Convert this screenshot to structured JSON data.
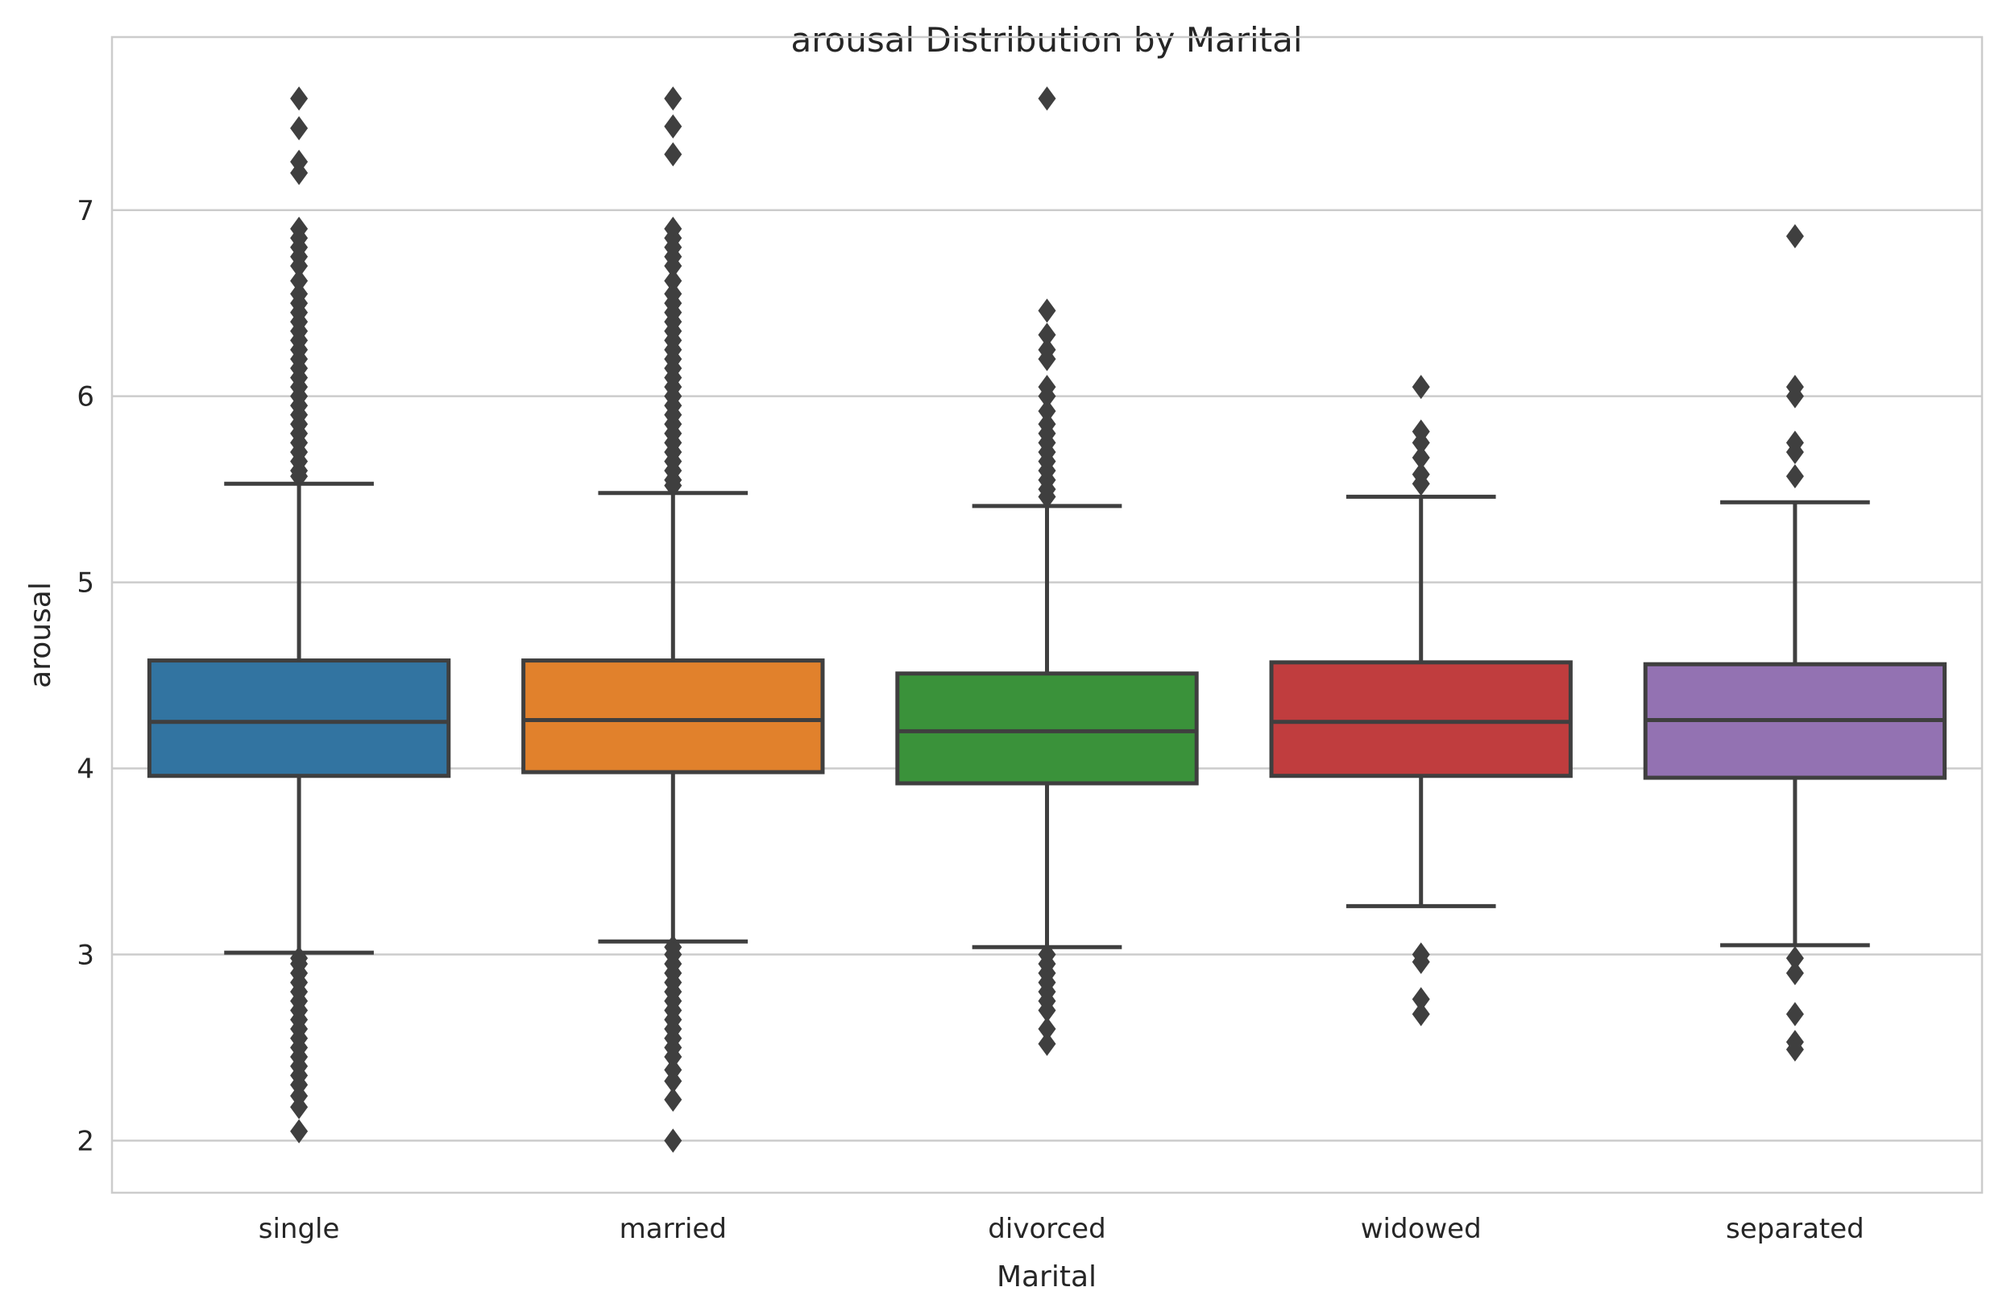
{
  "chart_data": {
    "type": "box",
    "title": "arousal Distribution by Marital",
    "xlabel": "Marital",
    "ylabel": "arousal",
    "ylim": [
      1.72,
      7.93
    ],
    "yticks": [
      2,
      3,
      4,
      5,
      6,
      7
    ],
    "grid": true,
    "categories": [
      "single",
      "married",
      "divorced",
      "widowed",
      "separated"
    ],
    "colors": [
      "#3274a1",
      "#e1812c",
      "#3a923a",
      "#c03d3e",
      "#9372b2"
    ],
    "series": [
      {
        "category": "single",
        "whisker_low": 3.01,
        "q1": 3.96,
        "median": 4.25,
        "q3": 4.58,
        "whisker_high": 5.53,
        "outliers": [
          7.6,
          7.44,
          7.26,
          7.2,
          6.9,
          6.85,
          6.8,
          6.75,
          6.7,
          6.62,
          6.55,
          6.5,
          6.45,
          6.4,
          6.35,
          6.3,
          6.25,
          6.2,
          6.15,
          6.1,
          6.05,
          6.0,
          5.95,
          5.9,
          5.85,
          5.8,
          5.75,
          5.7,
          5.65,
          5.6,
          5.57,
          2.98,
          2.95,
          2.9,
          2.85,
          2.8,
          2.75,
          2.7,
          2.65,
          2.6,
          2.55,
          2.5,
          2.45,
          2.4,
          2.35,
          2.3,
          2.24,
          2.18,
          2.05
        ]
      },
      {
        "category": "married",
        "whisker_low": 3.07,
        "q1": 3.98,
        "median": 4.26,
        "q3": 4.58,
        "whisker_high": 5.48,
        "outliers": [
          7.6,
          7.45,
          7.3,
          6.9,
          6.85,
          6.8,
          6.75,
          6.7,
          6.62,
          6.55,
          6.5,
          6.45,
          6.4,
          6.35,
          6.3,
          6.25,
          6.2,
          6.15,
          6.1,
          6.05,
          6.0,
          5.95,
          5.9,
          5.85,
          5.8,
          5.75,
          5.7,
          5.65,
          5.6,
          5.55,
          5.52,
          3.04,
          3.0,
          2.95,
          2.9,
          2.85,
          2.8,
          2.75,
          2.7,
          2.65,
          2.6,
          2.55,
          2.5,
          2.45,
          2.38,
          2.32,
          2.22,
          2.0
        ]
      },
      {
        "category": "divorced",
        "whisker_low": 3.04,
        "q1": 3.92,
        "median": 4.2,
        "q3": 4.51,
        "whisker_high": 5.41,
        "outliers": [
          7.6,
          6.46,
          6.33,
          6.25,
          6.2,
          6.05,
          6.0,
          5.92,
          5.85,
          5.8,
          5.75,
          5.7,
          5.65,
          5.6,
          5.55,
          5.5,
          5.46,
          3.0,
          2.95,
          2.9,
          2.85,
          2.8,
          2.75,
          2.7,
          2.6,
          2.52
        ]
      },
      {
        "category": "widowed",
        "whisker_low": 3.26,
        "q1": 3.96,
        "median": 4.25,
        "q3": 4.57,
        "whisker_high": 5.46,
        "outliers": [
          6.05,
          5.81,
          5.75,
          5.67,
          5.58,
          5.53,
          3.0,
          2.96,
          2.76,
          2.68
        ]
      },
      {
        "category": "separated",
        "whisker_low": 3.05,
        "q1": 3.95,
        "median": 4.26,
        "q3": 4.56,
        "whisker_high": 5.43,
        "outliers": [
          6.86,
          6.05,
          6.0,
          5.75,
          5.7,
          5.57,
          2.98,
          2.9,
          2.68,
          2.53,
          2.49
        ]
      }
    ]
  }
}
